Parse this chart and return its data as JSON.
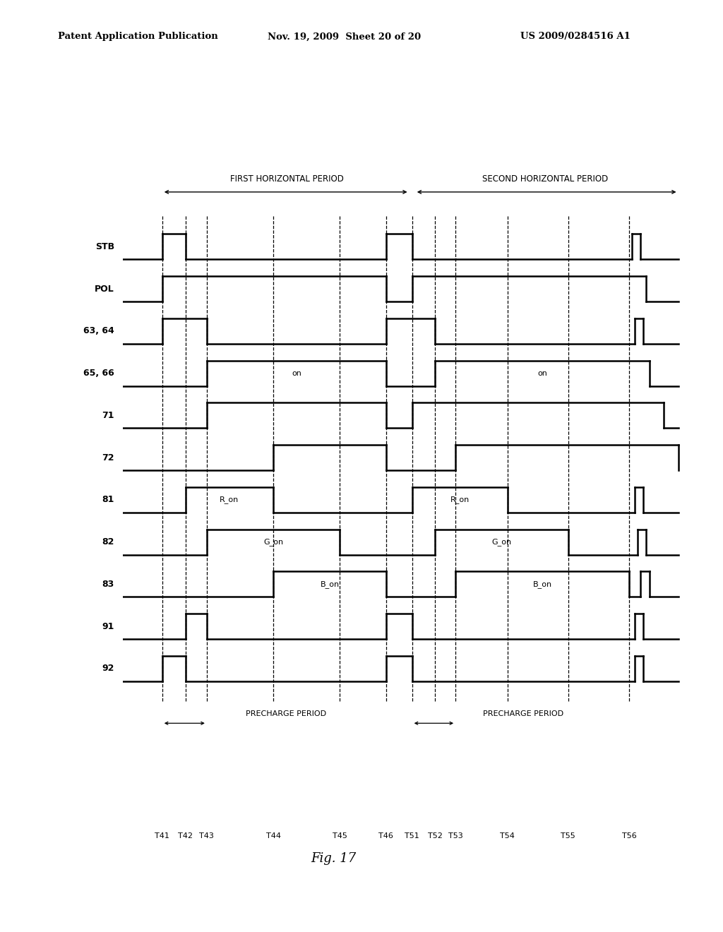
{
  "title_line1": "Patent Application Publication",
  "title_line2": "Nov. 19, 2009  Sheet 20 of 20",
  "title_line3": "US 2009/0284516 A1",
  "fig_label": "Fig. 17",
  "background_color": "#ffffff",
  "signals": [
    "STB",
    "POL",
    "63, 64",
    "65, 66",
    "71",
    "72",
    "81",
    "82",
    "83",
    "91",
    "92"
  ],
  "period_label1": "FIRST HORIZONTAL PERIOD",
  "period_label2": "SECOND HORIZONTAL PERIOD",
  "precharge_label": "PRECHARGE PERIOD",
  "time_labels_1": [
    "T41",
    "T42",
    "T43",
    "T44",
    "T45",
    "T46"
  ],
  "time_labels_2": [
    "T51",
    "T52",
    "T53",
    "T54",
    "T55",
    "T56"
  ]
}
